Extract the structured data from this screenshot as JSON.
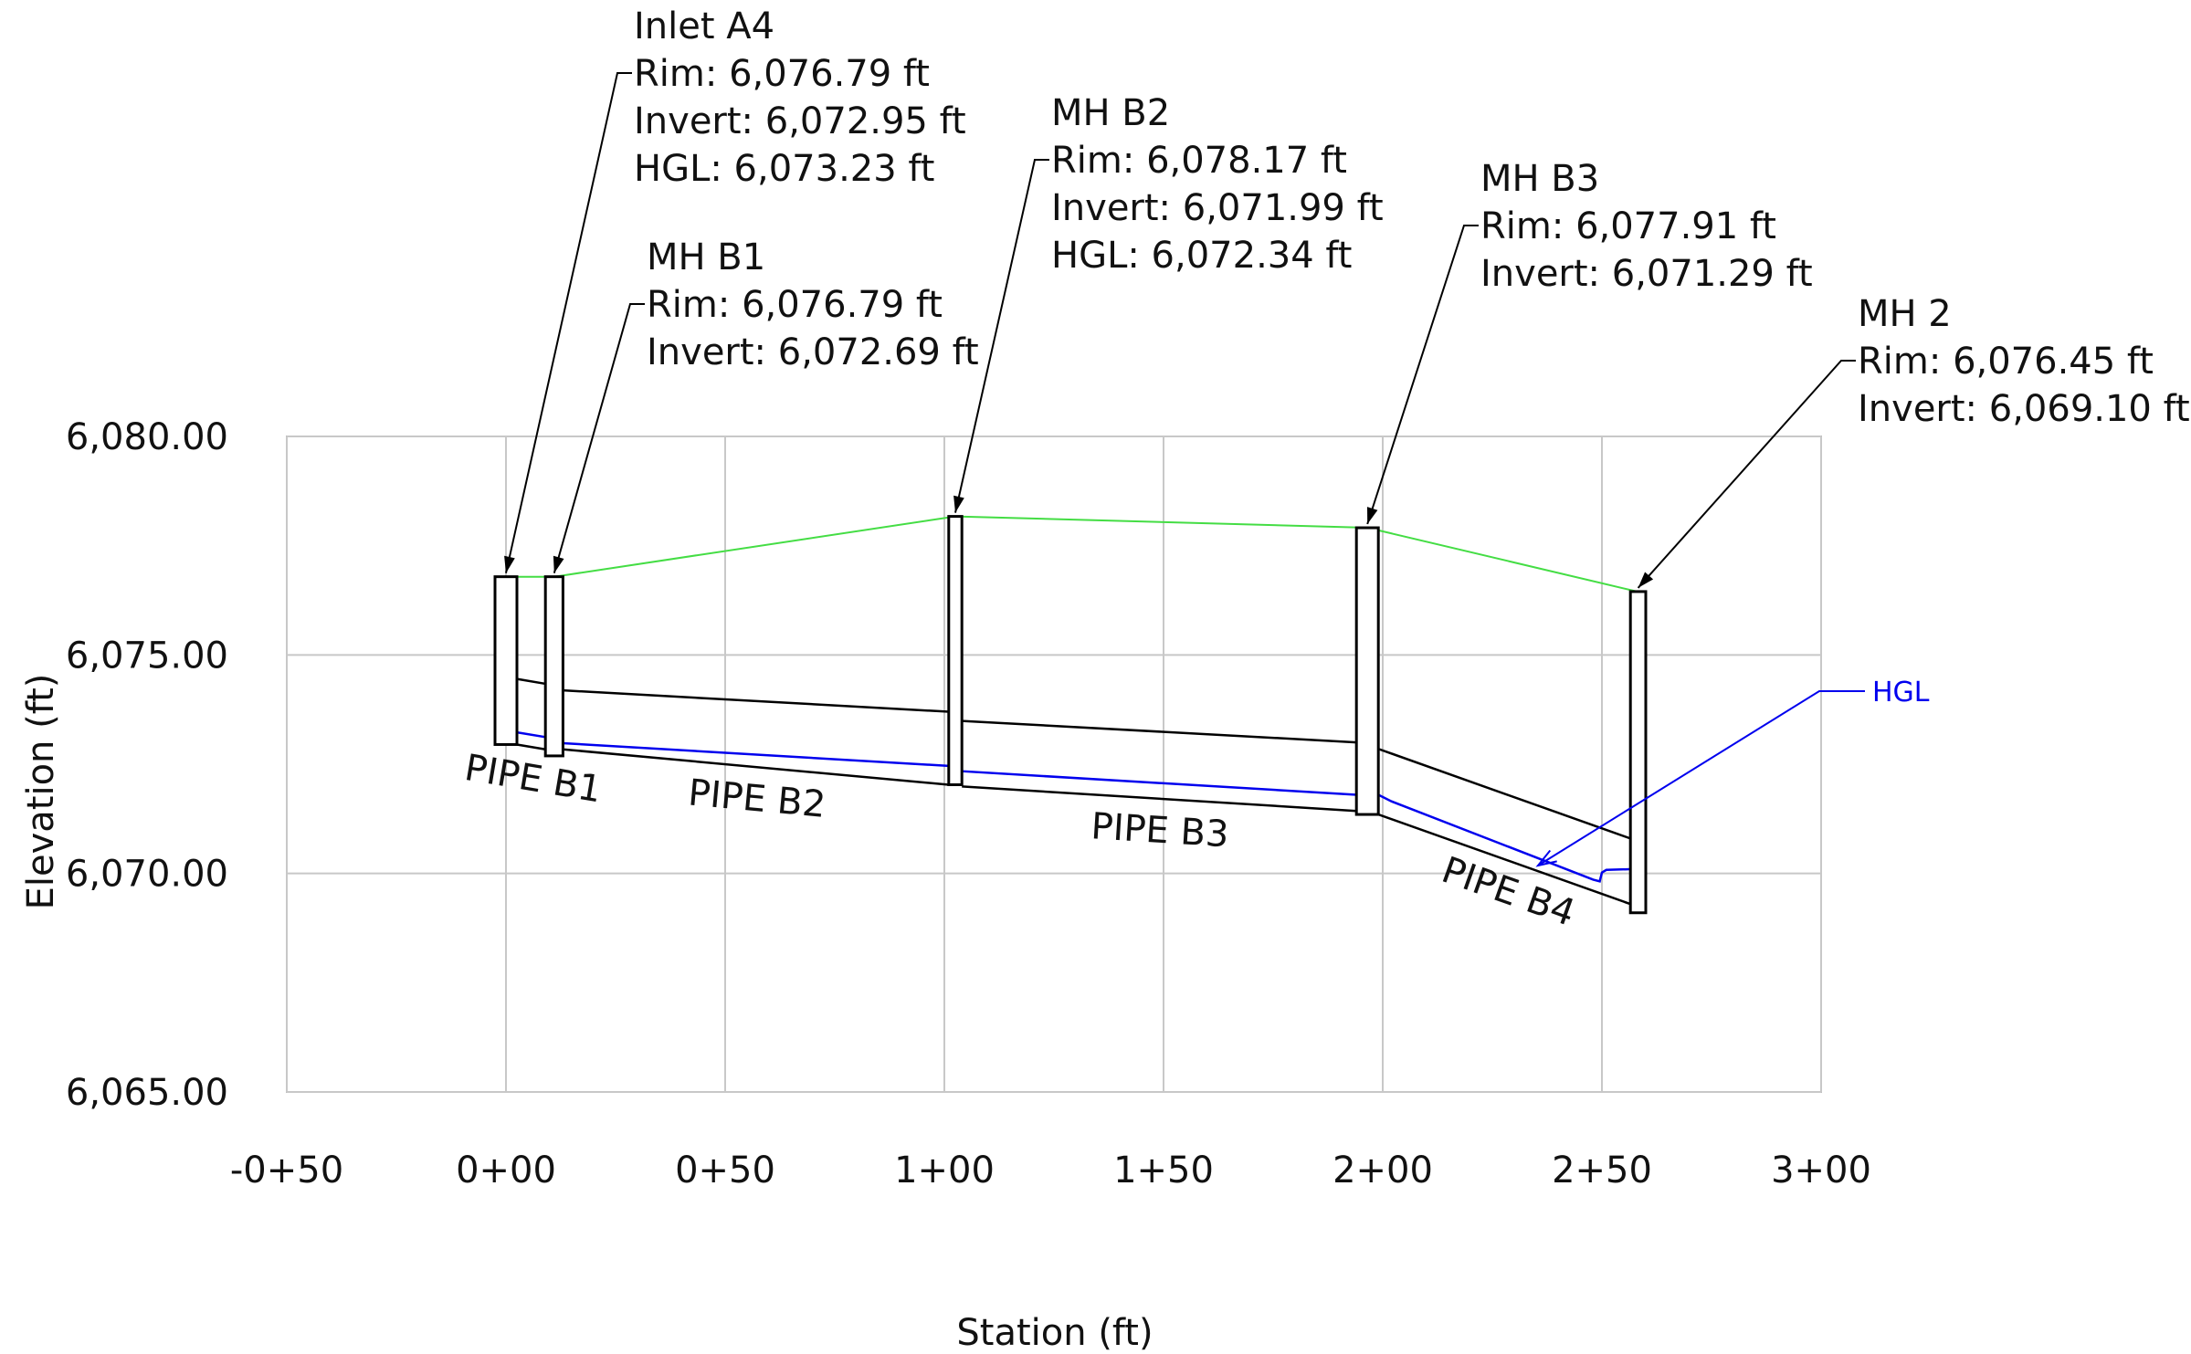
{
  "chart_data": {
    "type": "profile",
    "xlabel": "Station (ft)",
    "ylabel": "Elevation (ft)",
    "xlim": [
      -50,
      300
    ],
    "ylim": [
      6065,
      6080
    ],
    "x_ticks": [
      {
        "value": -50,
        "label": "-0+50"
      },
      {
        "value": 0,
        "label": "0+00"
      },
      {
        "value": 50,
        "label": "0+50"
      },
      {
        "value": 100,
        "label": "1+00"
      },
      {
        "value": 150,
        "label": "1+50"
      },
      {
        "value": 200,
        "label": "2+00"
      },
      {
        "value": 250,
        "label": "2+50"
      },
      {
        "value": 300,
        "label": "3+00"
      }
    ],
    "y_ticks": [
      {
        "value": 6065,
        "label": "6,065.00"
      },
      {
        "value": 6070,
        "label": "6,070.00"
      },
      {
        "value": 6075,
        "label": "6,075.00"
      },
      {
        "value": 6080,
        "label": "6,080.00"
      }
    ],
    "grid": true,
    "colors": {
      "ground": "#44dd44",
      "hgl": "#0000ee",
      "pipe": "#000000",
      "grid": "#c8c8c8"
    },
    "structures": [
      {
        "id": "inlet-a4",
        "x_left": -2.5,
        "x_right": 2.5,
        "rim": 6076.79,
        "bottom": 6072.95,
        "lines": [
          "Inlet A4",
          "Rim: 6,076.79 ft",
          "Invert: 6,072.95 ft",
          "HGL: 6,073.23 ft"
        ]
      },
      {
        "id": "mh-b1",
        "x_left": 9,
        "x_right": 13,
        "rim": 6076.79,
        "bottom": 6072.69,
        "lines": [
          "MH B1",
          "Rim: 6,076.79 ft",
          "Invert: 6,072.69 ft"
        ]
      },
      {
        "id": "mh-b2",
        "x_left": 101,
        "x_right": 104,
        "rim": 6078.17,
        "bottom": 6072.03,
        "lines": [
          "MH B2",
          "Rim: 6,078.17 ft",
          "Invert: 6,071.99 ft",
          "HGL: 6,072.34 ft"
        ]
      },
      {
        "id": "mh-b3",
        "x_left": 194,
        "x_right": 199,
        "rim": 6077.91,
        "bottom": 6071.35,
        "lines": [
          "MH B3",
          "Rim: 6,077.91 ft",
          "Invert: 6,071.29 ft"
        ]
      },
      {
        "id": "mh-2",
        "x_left": 256.5,
        "x_right": 260,
        "rim": 6076.45,
        "bottom": 6069.1,
        "lines": [
          "MH 2",
          "Rim: 6,076.45 ft",
          "Invert: 6,069.10 ft"
        ]
      }
    ],
    "ground_line": [
      [
        0,
        6076.79
      ],
      [
        11,
        6076.79
      ],
      [
        102.5,
        6078.17
      ],
      [
        196.5,
        6077.91
      ],
      [
        258,
        6076.45
      ]
    ],
    "pipes": [
      {
        "name": "PIPE B1",
        "x0": 2.5,
        "x1": 9,
        "invert0": 6072.95,
        "invert1": 6072.84,
        "crown0": 6074.45,
        "crown1": 6074.34
      },
      {
        "name": "PIPE B2",
        "x0": 13,
        "x1": 101,
        "invert0": 6072.84,
        "invert1": 6072.03,
        "crown0": 6074.19,
        "crown1": 6073.7
      },
      {
        "name": "PIPE B3",
        "x0": 104,
        "x1": 194,
        "invert0": 6071.99,
        "invert1": 6071.43,
        "crown0": 6073.49,
        "crown1": 6073.0
      },
      {
        "name": "PIPE B4",
        "x0": 199,
        "x1": 256.5,
        "invert0": 6071.35,
        "invert1": 6069.3,
        "crown0": 6072.85,
        "crown1": 6070.8
      }
    ],
    "hgl_line": [
      [
        -2.5,
        6073.23
      ],
      [
        2.5,
        6073.23
      ],
      [
        9,
        6073.12
      ],
      [
        13,
        6072.98
      ],
      [
        101,
        6072.46
      ],
      [
        104,
        6072.34
      ],
      [
        194,
        6071.8
      ],
      [
        199,
        6071.8
      ],
      [
        202,
        6071.65
      ],
      [
        248,
        6069.86
      ],
      [
        249.5,
        6069.82
      ],
      [
        250,
        6070.02
      ],
      [
        251,
        6070.08
      ],
      [
        257,
        6070.1
      ]
    ],
    "hgl_legend": "HGL"
  }
}
